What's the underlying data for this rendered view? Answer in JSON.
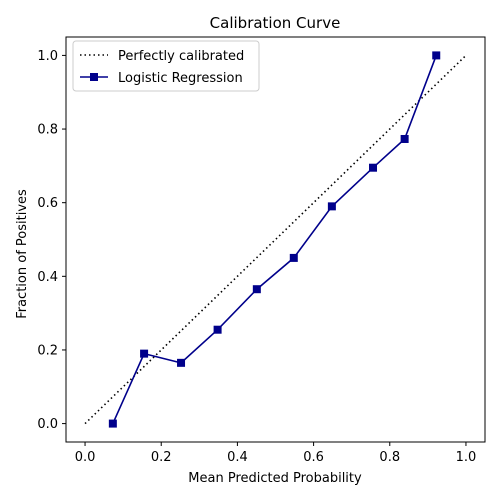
{
  "chart_data": {
    "type": "line",
    "title": "Calibration Curve",
    "xlabel": "Mean Predicted Probability",
    "ylabel": "Fraction of Positives",
    "xlim": [
      -0.05,
      1.05
    ],
    "ylim": [
      -0.05,
      1.05
    ],
    "xticks": [
      0.0,
      0.2,
      0.4,
      0.6,
      0.8,
      1.0
    ],
    "yticks": [
      0.0,
      0.2,
      0.4,
      0.6,
      0.8,
      1.0
    ],
    "xtick_labels": [
      "0.0",
      "0.2",
      "0.4",
      "0.6",
      "0.8",
      "1.0"
    ],
    "ytick_labels": [
      "0.0",
      "0.2",
      "0.4",
      "0.6",
      "0.8",
      "1.0"
    ],
    "grid": false,
    "legend_position": "top-left",
    "reference_line": {
      "name": "Perfectly calibrated",
      "x": [
        0,
        1
      ],
      "y": [
        0,
        1
      ],
      "style": "dotted",
      "color": "#000000"
    },
    "series": [
      {
        "name": "Logistic Regression",
        "marker": "square",
        "color": "#00008b",
        "x": [
          0.073,
          0.155,
          0.252,
          0.348,
          0.451,
          0.548,
          0.648,
          0.756,
          0.839,
          0.922
        ],
        "y": [
          0.0,
          0.19,
          0.165,
          0.255,
          0.365,
          0.45,
          0.59,
          0.695,
          0.773,
          1.0
        ]
      }
    ]
  }
}
